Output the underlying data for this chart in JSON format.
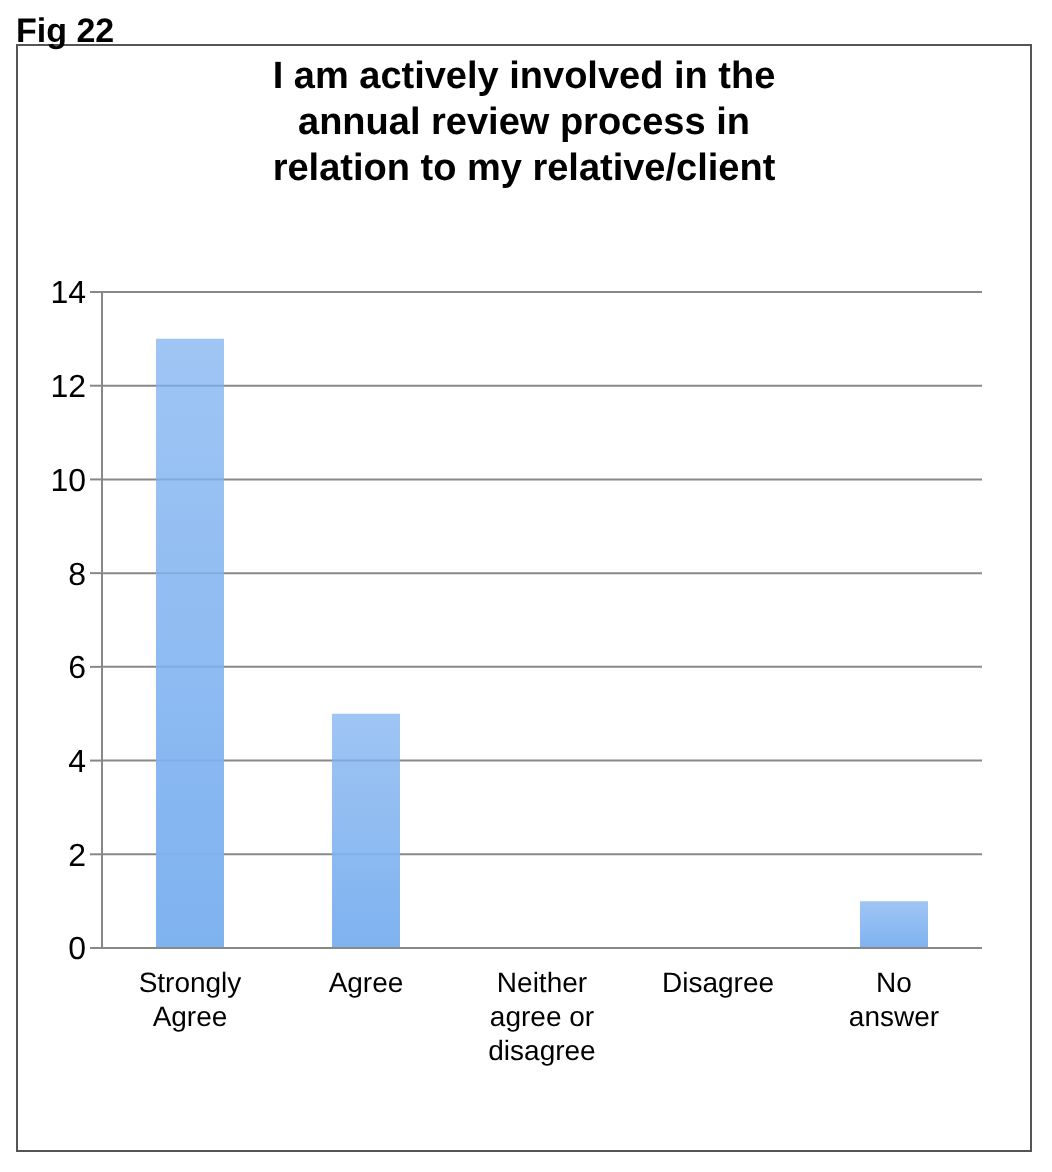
{
  "chart_data": {
    "type": "bar",
    "title": "I am actively involved in the annual review process in relation to my relative/client",
    "annotations": [
      "Fig 22"
    ],
    "categories": [
      "Strongly Agree",
      "Agree",
      "Neither agree or disagree",
      "Disagree",
      "No answer"
    ],
    "values": [
      13,
      5,
      0,
      0,
      1
    ],
    "color": "#7fb2f0",
    "ylim": [
      0,
      14
    ],
    "yticks": [
      0,
      2,
      4,
      6,
      8,
      10,
      12,
      14
    ],
    "grid": "y"
  }
}
